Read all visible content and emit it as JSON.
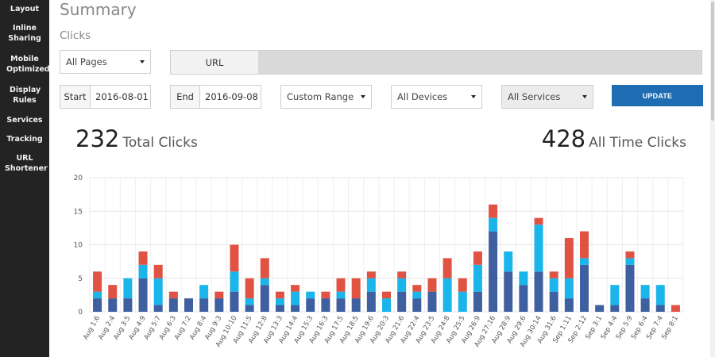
{
  "sidebar": {
    "items": [
      {
        "label": "Layout"
      },
      {
        "label": "Inline Sharing"
      },
      {
        "label": "Mobile Optimized"
      },
      {
        "label": "Display Rules"
      },
      {
        "label": "Services"
      },
      {
        "label": "Tracking"
      },
      {
        "label": "URL Shortener"
      }
    ]
  },
  "main": {
    "title": "Summary",
    "section": "Clicks",
    "filters": {
      "pages": "All Pages",
      "url_label": "URL",
      "url_value": "",
      "start_label": "Start",
      "start_value": "2016-08-01",
      "end_label": "End",
      "end_value": "2016-09-08",
      "range": "Custom Range (Pr",
      "devices": "All Devices",
      "services": "All Services",
      "update_label": "UPDATE"
    },
    "stats": {
      "total_value": "232",
      "total_label": "Total Clicks",
      "alltime_value": "428",
      "alltime_label": "All Time Clicks"
    }
  },
  "colors": {
    "sidebar_bg": "#232323",
    "button": "#1e6cb1",
    "series_dark": "#3e5fa0",
    "series_light": "#1ab5ea",
    "series_red": "#e05343"
  },
  "chart_data": {
    "type": "bar",
    "stacked": true,
    "ylim": [
      0,
      20
    ],
    "yticks": [
      0,
      5,
      10,
      15,
      20
    ],
    "grid": true,
    "categories": [
      "Aug 1:6",
      "Aug 2:4",
      "Aug 3:5",
      "Aug 4:9",
      "Aug 5:7",
      "Aug 6:3",
      "Aug 7:2",
      "Aug 8:4",
      "Aug 9:3",
      "Aug 10:10",
      "Aug 11:5",
      "Aug 12:8",
      "Aug 13:3",
      "Aug 14:4",
      "Aug 15:3",
      "Aug 16:3",
      "Aug 17:5",
      "Aug 18:5",
      "Aug 19:6",
      "Aug 20:3",
      "Aug 21:6",
      "Aug 22:4",
      "Aug 23:5",
      "Aug 24:8",
      "Aug 25:5",
      "Aug 26:9",
      "Aug 27:16",
      "Aug 28:9",
      "Aug 29:6",
      "Aug 30:14",
      "Aug 31:6",
      "Sep 1:11",
      "Sep 2:12",
      "Sep 3:1",
      "Sep 4:4",
      "Sep 5:9",
      "Sep 6:4",
      "Sep 7:4",
      "Sep 8:1"
    ],
    "series": [
      {
        "values": [
          2,
          2,
          2,
          5,
          1,
          2,
          2,
          2,
          2,
          3,
          1,
          4,
          1,
          1,
          2,
          2,
          2,
          2,
          3,
          0,
          3,
          2,
          3,
          0,
          0,
          3,
          12,
          6,
          4,
          6,
          3,
          2,
          7,
          1,
          1,
          7,
          2,
          1,
          0
        ]
      },
      {
        "values": [
          1,
          0,
          3,
          2,
          4,
          0,
          0,
          2,
          0,
          3,
          1,
          1,
          1,
          2,
          1,
          0,
          1,
          0,
          2,
          2,
          2,
          1,
          0,
          5,
          3,
          4,
          2,
          3,
          2,
          7,
          2,
          3,
          1,
          0,
          3,
          1,
          2,
          3,
          0
        ]
      },
      {
        "values": [
          3,
          2,
          0,
          2,
          2,
          1,
          0,
          0,
          1,
          4,
          3,
          3,
          1,
          1,
          0,
          1,
          2,
          3,
          1,
          1,
          1,
          1,
          2,
          3,
          2,
          2,
          2,
          0,
          0,
          1,
          1,
          6,
          4,
          0,
          0,
          1,
          0,
          0,
          1
        ]
      }
    ]
  }
}
